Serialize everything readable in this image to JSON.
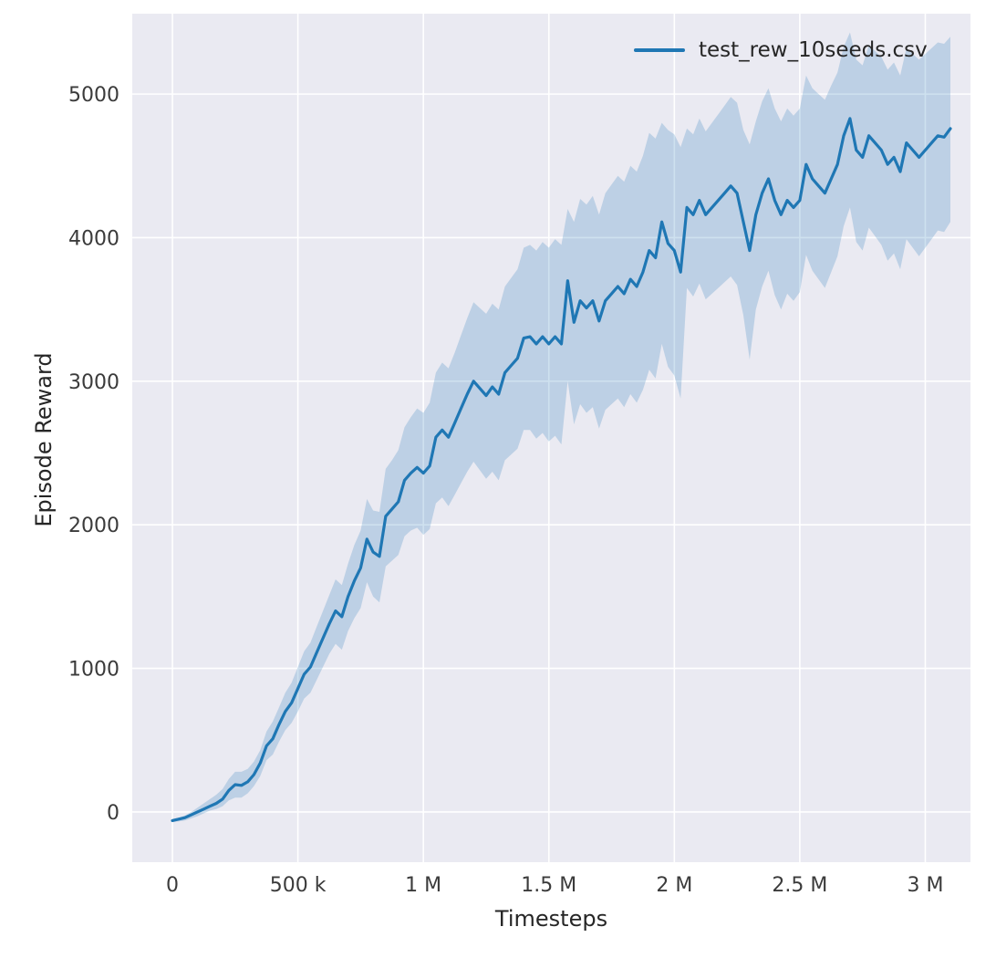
{
  "chart_data": {
    "type": "line",
    "title": "",
    "xlabel": "Timesteps",
    "ylabel": "Episode Reward",
    "plot_background": "#eaeaf2",
    "grid_color": "#ffffff",
    "grid_on": true,
    "tick_color": "#3b3b3b",
    "label_color": "#262626",
    "xlim": [
      -160000,
      3180000
    ],
    "ylim": [
      -350,
      5560
    ],
    "x_ticks": [
      {
        "value": 0,
        "label": "0"
      },
      {
        "value": 500000,
        "label": "500 k"
      },
      {
        "value": 1000000,
        "label": "1 M"
      },
      {
        "value": 1500000,
        "label": "1.5 M"
      },
      {
        "value": 2000000,
        "label": "2 M"
      },
      {
        "value": 2500000,
        "label": "2.5 M"
      },
      {
        "value": 3000000,
        "label": "3 M"
      }
    ],
    "y_ticks": [
      {
        "value": 0,
        "label": "0"
      },
      {
        "value": 1000,
        "label": "1000"
      },
      {
        "value": 2000,
        "label": "2000"
      },
      {
        "value": 3000,
        "label": "3000"
      },
      {
        "value": 4000,
        "label": "4000"
      },
      {
        "value": 5000,
        "label": "5000"
      }
    ],
    "legend": {
      "position": "top-right",
      "entries": [
        {
          "label": "test_rew_10seeds.csv",
          "color": "#1f77b4"
        }
      ]
    },
    "series": [
      {
        "name": "test_rew_10seeds.csv",
        "color": "#1f77b4",
        "line_width": 3.2,
        "band_color": "#1f77b4",
        "band_opacity": 0.22,
        "x_multiplier": 1000,
        "point_format": [
          "x_thousands",
          "band_low",
          "mean",
          "band_high"
        ],
        "points": [
          [
            0,
            -70,
            -60,
            -50
          ],
          [
            25,
            -65,
            -50,
            -40
          ],
          [
            50,
            -60,
            -40,
            -25
          ],
          [
            75,
            -45,
            -20,
            0
          ],
          [
            100,
            -30,
            0,
            30
          ],
          [
            125,
            -10,
            20,
            60
          ],
          [
            150,
            10,
            40,
            90
          ],
          [
            175,
            20,
            60,
            120
          ],
          [
            200,
            40,
            90,
            160
          ],
          [
            225,
            80,
            150,
            230
          ],
          [
            250,
            100,
            190,
            280
          ],
          [
            275,
            100,
            185,
            280
          ],
          [
            300,
            130,
            210,
            300
          ],
          [
            325,
            180,
            260,
            350
          ],
          [
            350,
            250,
            340,
            430
          ],
          [
            375,
            360,
            460,
            560
          ],
          [
            400,
            400,
            510,
            630
          ],
          [
            425,
            490,
            610,
            730
          ],
          [
            450,
            570,
            700,
            830
          ],
          [
            475,
            620,
            760,
            900
          ],
          [
            500,
            700,
            860,
            1010
          ],
          [
            525,
            790,
            960,
            1120
          ],
          [
            550,
            830,
            1010,
            1180
          ],
          [
            575,
            920,
            1110,
            1290
          ],
          [
            600,
            1010,
            1210,
            1400
          ],
          [
            625,
            1100,
            1310,
            1510
          ],
          [
            650,
            1170,
            1400,
            1620
          ],
          [
            675,
            1130,
            1360,
            1580
          ],
          [
            700,
            1260,
            1500,
            1730
          ],
          [
            725,
            1350,
            1610,
            1860
          ],
          [
            750,
            1420,
            1700,
            1960
          ],
          [
            775,
            1600,
            1900,
            2180
          ],
          [
            800,
            1500,
            1810,
            2100
          ],
          [
            825,
            1460,
            1780,
            2090
          ],
          [
            850,
            1710,
            2060,
            2390
          ],
          [
            875,
            1750,
            2110,
            2450
          ],
          [
            900,
            1790,
            2160,
            2520
          ],
          [
            925,
            1920,
            2310,
            2680
          ],
          [
            950,
            1960,
            2360,
            2750
          ],
          [
            975,
            1980,
            2400,
            2810
          ],
          [
            1000,
            1930,
            2360,
            2780
          ],
          [
            1025,
            1970,
            2410,
            2850
          ],
          [
            1050,
            2150,
            2610,
            3060
          ],
          [
            1075,
            2190,
            2660,
            3130
          ],
          [
            1100,
            2130,
            2610,
            3090
          ],
          [
            1125,
            2210,
            2710,
            3200
          ],
          [
            1150,
            2290,
            2810,
            3320
          ],
          [
            1175,
            2370,
            2910,
            3440
          ],
          [
            1200,
            2440,
            3000,
            3550
          ],
          [
            1225,
            2380,
            2950,
            3510
          ],
          [
            1250,
            2320,
            2900,
            3470
          ],
          [
            1275,
            2370,
            2960,
            3540
          ],
          [
            1300,
            2310,
            2910,
            3500
          ],
          [
            1325,
            2450,
            3060,
            3660
          ],
          [
            1350,
            2490,
            3110,
            3720
          ],
          [
            1375,
            2530,
            3160,
            3780
          ],
          [
            1400,
            2660,
            3300,
            3930
          ],
          [
            1425,
            2660,
            3310,
            3950
          ],
          [
            1450,
            2600,
            3260,
            3910
          ],
          [
            1475,
            2640,
            3310,
            3970
          ],
          [
            1500,
            2580,
            3260,
            3930
          ],
          [
            1525,
            2620,
            3310,
            3990
          ],
          [
            1550,
            2560,
            3260,
            3950
          ],
          [
            1575,
            3000,
            3700,
            4200
          ],
          [
            1600,
            2700,
            3410,
            4110
          ],
          [
            1625,
            2840,
            3560,
            4270
          ],
          [
            1650,
            2780,
            3510,
            4230
          ],
          [
            1675,
            2820,
            3560,
            4290
          ],
          [
            1700,
            2670,
            3420,
            4160
          ],
          [
            1725,
            2800,
            3560,
            4310
          ],
          [
            1750,
            2840,
            3610,
            4370
          ],
          [
            1775,
            2880,
            3660,
            4430
          ],
          [
            1800,
            2820,
            3610,
            4390
          ],
          [
            1825,
            2910,
            3710,
            4500
          ],
          [
            1850,
            2850,
            3660,
            4460
          ],
          [
            1875,
            2940,
            3760,
            4570
          ],
          [
            1900,
            3080,
            3910,
            4730
          ],
          [
            1925,
            3020,
            3860,
            4690
          ],
          [
            1950,
            3260,
            4110,
            4800
          ],
          [
            1975,
            3100,
            3960,
            4750
          ],
          [
            2000,
            3040,
            3910,
            4720
          ],
          [
            2025,
            2880,
            3760,
            4630
          ],
          [
            2050,
            3650,
            4210,
            4760
          ],
          [
            2075,
            3590,
            4160,
            4720
          ],
          [
            2100,
            3680,
            4260,
            4830
          ],
          [
            2125,
            3570,
            4160,
            4740
          ],
          [
            2150,
            3610,
            4210,
            4800
          ],
          [
            2175,
            3650,
            4260,
            4860
          ],
          [
            2200,
            3690,
            4310,
            4920
          ],
          [
            2225,
            3730,
            4360,
            4980
          ],
          [
            2250,
            3670,
            4310,
            4940
          ],
          [
            2275,
            3460,
            4110,
            4750
          ],
          [
            2300,
            3150,
            3910,
            4650
          ],
          [
            2325,
            3500,
            4160,
            4810
          ],
          [
            2350,
            3660,
            4310,
            4950
          ],
          [
            2375,
            3770,
            4410,
            5040
          ],
          [
            2400,
            3600,
            4260,
            4900
          ],
          [
            2425,
            3500,
            4160,
            4810
          ],
          [
            2450,
            3610,
            4260,
            4900
          ],
          [
            2475,
            3560,
            4210,
            4850
          ],
          [
            2500,
            3620,
            4260,
            4900
          ],
          [
            2525,
            3880,
            4510,
            5130
          ],
          [
            2550,
            3770,
            4410,
            5040
          ],
          [
            2575,
            3710,
            4360,
            5000
          ],
          [
            2600,
            3650,
            4310,
            4960
          ],
          [
            2625,
            3760,
            4410,
            5060
          ],
          [
            2650,
            3870,
            4510,
            5150
          ],
          [
            2675,
            4080,
            4710,
            5330
          ],
          [
            2700,
            4210,
            4830,
            5430
          ],
          [
            2725,
            3970,
            4610,
            5240
          ],
          [
            2750,
            3910,
            4560,
            5200
          ],
          [
            2775,
            4070,
            4710,
            5340
          ],
          [
            2800,
            4010,
            4660,
            5300
          ],
          [
            2825,
            3950,
            4610,
            5260
          ],
          [
            2850,
            3840,
            4510,
            5170
          ],
          [
            2875,
            3890,
            4560,
            5220
          ],
          [
            2900,
            3780,
            4460,
            5130
          ],
          [
            2925,
            3990,
            4660,
            5320
          ],
          [
            2950,
            3930,
            4610,
            5280
          ],
          [
            2975,
            3870,
            4560,
            5240
          ],
          [
            3000,
            3930,
            4610,
            5280
          ],
          [
            3025,
            3990,
            4660,
            5320
          ],
          [
            3050,
            4050,
            4710,
            5360
          ],
          [
            3075,
            4040,
            4700,
            5350
          ],
          [
            3100,
            4110,
            4760,
            5400
          ]
        ]
      }
    ]
  }
}
